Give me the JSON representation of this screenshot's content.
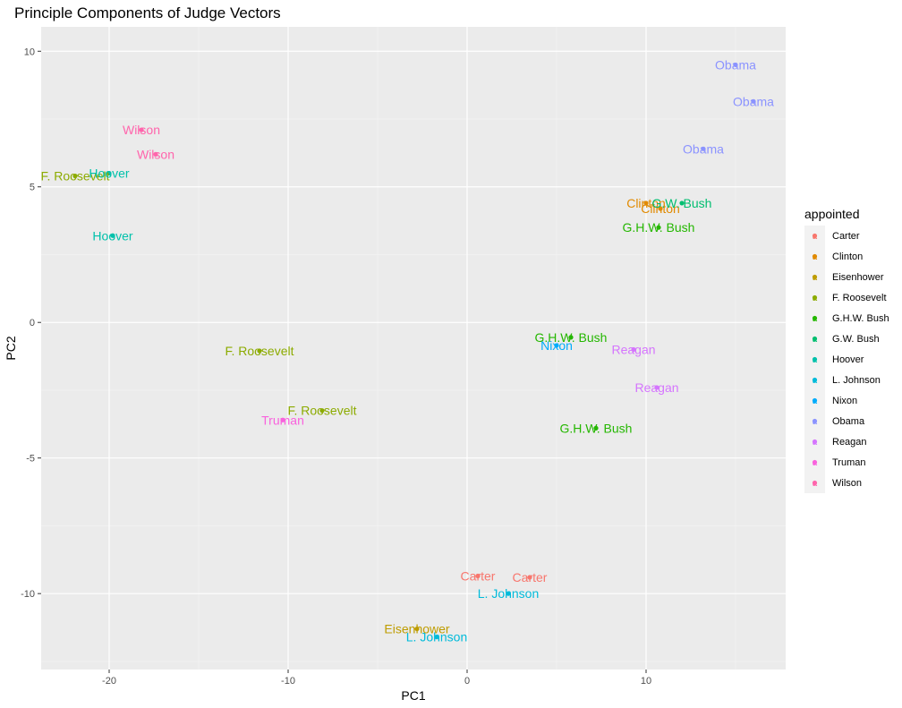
{
  "chart_data": {
    "type": "scatter",
    "title": "Principle Components of Judge Vectors",
    "xlabel": "PC1",
    "ylabel": "PC2",
    "xlim": [
      -23.8,
      17.8
    ],
    "ylim": [
      -12.8,
      10.9
    ],
    "x_ticks": [
      -20,
      -10,
      0,
      10
    ],
    "x_tick_labels": [
      "-20",
      "-10",
      "0",
      "10"
    ],
    "y_ticks": [
      -10,
      -5,
      0,
      5,
      10
    ],
    "y_tick_labels": [
      "-10",
      "-5",
      "0",
      "5",
      "10"
    ],
    "grid": true,
    "legend": {
      "title": "appointed",
      "placement": "right",
      "entries": [
        {
          "name": "Carter",
          "color": "#F8766D"
        },
        {
          "name": "Clinton",
          "color": "#E18A00"
        },
        {
          "name": "Eisenhower",
          "color": "#BE9C00"
        },
        {
          "name": "F. Roosevelt",
          "color": "#8CAB00"
        },
        {
          "name": "G.H.W. Bush",
          "color": "#24B700"
        },
        {
          "name": "G.W. Bush",
          "color": "#00BE70"
        },
        {
          "name": "Hoover",
          "color": "#00C1AB"
        },
        {
          "name": "L. Johnson",
          "color": "#00BBDA"
        },
        {
          "name": "Nixon",
          "color": "#00ACFC"
        },
        {
          "name": "Obama",
          "color": "#8B93FF"
        },
        {
          "name": "Reagan",
          "color": "#D575FE"
        },
        {
          "name": "Truman",
          "color": "#F962DD"
        },
        {
          "name": "Wilson",
          "color": "#FF65AC"
        }
      ]
    },
    "points": [
      {
        "label": "Obama",
        "x": 15.0,
        "y": 9.5
      },
      {
        "label": "Obama",
        "x": 16.0,
        "y": 8.15
      },
      {
        "label": "Obama",
        "x": 13.2,
        "y": 6.4
      },
      {
        "label": "Wilson",
        "x": -18.2,
        "y": 7.1
      },
      {
        "label": "Wilson",
        "x": -17.4,
        "y": 6.2
      },
      {
        "label": "F. Roosevelt",
        "x": -21.9,
        "y": 5.4
      },
      {
        "label": "Hoover",
        "x": -20.0,
        "y": 5.5
      },
      {
        "label": "Hoover",
        "x": -19.8,
        "y": 3.2
      },
      {
        "label": "Clinton",
        "x": 10.0,
        "y": 4.4
      },
      {
        "label": "Clinton",
        "x": 10.8,
        "y": 4.2
      },
      {
        "label": "G.W. Bush",
        "x": 12.0,
        "y": 4.4
      },
      {
        "label": "G.H.W. Bush",
        "x": 10.7,
        "y": 3.5
      },
      {
        "label": "G.H.W. Bush",
        "x": 5.8,
        "y": -0.55
      },
      {
        "label": "G.H.W. Bush",
        "x": 7.2,
        "y": -3.9
      },
      {
        "label": "Nixon",
        "x": 5.0,
        "y": -0.85
      },
      {
        "label": "Reagan",
        "x": 9.3,
        "y": -1.0
      },
      {
        "label": "Reagan",
        "x": 10.6,
        "y": -2.4
      },
      {
        "label": "F. Roosevelt",
        "x": -11.6,
        "y": -1.05
      },
      {
        "label": "F. Roosevelt",
        "x": -8.1,
        "y": -3.25
      },
      {
        "label": "Truman",
        "x": -10.3,
        "y": -3.6
      },
      {
        "label": "Carter",
        "x": 0.6,
        "y": -9.35
      },
      {
        "label": "Carter",
        "x": 3.5,
        "y": -9.4
      },
      {
        "label": "L. Johnson",
        "x": 2.3,
        "y": -10.0
      },
      {
        "label": "L. Johnson",
        "x": -1.7,
        "y": -11.6
      },
      {
        "label": "Eisenhower",
        "x": -2.8,
        "y": -11.3
      }
    ]
  }
}
